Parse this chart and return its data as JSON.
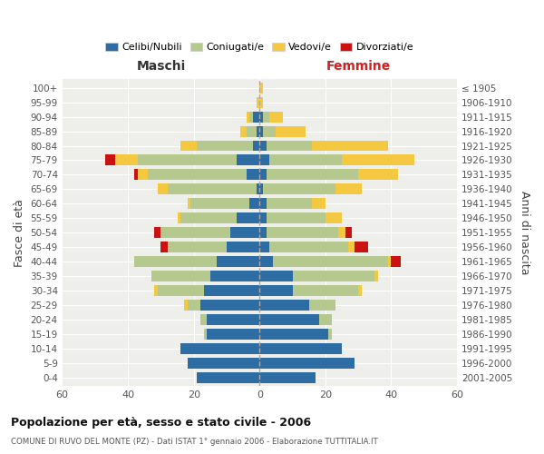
{
  "age_groups": [
    "0-4",
    "5-9",
    "10-14",
    "15-19",
    "20-24",
    "25-29",
    "30-34",
    "35-39",
    "40-44",
    "45-49",
    "50-54",
    "55-59",
    "60-64",
    "65-69",
    "70-74",
    "75-79",
    "80-84",
    "85-89",
    "90-94",
    "95-99",
    "100+"
  ],
  "birth_years": [
    "2001-2005",
    "1996-2000",
    "1991-1995",
    "1986-1990",
    "1981-1985",
    "1976-1980",
    "1971-1975",
    "1966-1970",
    "1961-1965",
    "1956-1960",
    "1951-1955",
    "1946-1950",
    "1941-1945",
    "1936-1940",
    "1931-1935",
    "1926-1930",
    "1921-1925",
    "1916-1920",
    "1911-1915",
    "1906-1910",
    "≤ 1905"
  ],
  "maschi": {
    "celibi": [
      19,
      22,
      24,
      16,
      16,
      18,
      17,
      15,
      13,
      10,
      9,
      7,
      3,
      1,
      4,
      7,
      2,
      1,
      2,
      0,
      0
    ],
    "coniugati": [
      0,
      0,
      0,
      1,
      2,
      4,
      14,
      18,
      25,
      18,
      21,
      17,
      18,
      27,
      30,
      30,
      17,
      3,
      1,
      0,
      0
    ],
    "vedovi": [
      0,
      0,
      0,
      0,
      0,
      1,
      1,
      0,
      0,
      0,
      0,
      1,
      1,
      3,
      3,
      7,
      5,
      2,
      1,
      1,
      0
    ],
    "divorziati": [
      0,
      0,
      0,
      0,
      0,
      0,
      0,
      0,
      0,
      2,
      2,
      0,
      0,
      0,
      1,
      3,
      0,
      0,
      0,
      0,
      0
    ]
  },
  "femmine": {
    "nubili": [
      17,
      29,
      25,
      21,
      18,
      15,
      10,
      10,
      4,
      3,
      2,
      2,
      2,
      1,
      2,
      3,
      2,
      1,
      1,
      0,
      0
    ],
    "coniugate": [
      0,
      0,
      0,
      1,
      4,
      8,
      20,
      25,
      35,
      24,
      22,
      18,
      14,
      22,
      28,
      22,
      14,
      4,
      2,
      0,
      0
    ],
    "vedove": [
      0,
      0,
      0,
      0,
      0,
      0,
      1,
      1,
      1,
      2,
      2,
      5,
      4,
      8,
      12,
      22,
      23,
      9,
      4,
      1,
      1
    ],
    "divorziate": [
      0,
      0,
      0,
      0,
      0,
      0,
      0,
      0,
      3,
      4,
      2,
      0,
      0,
      0,
      0,
      0,
      0,
      0,
      0,
      0,
      0
    ]
  },
  "colors": {
    "celibi_nubili": "#2E6DA4",
    "coniugati_e": "#B5C98E",
    "vedovi_e": "#F5C842",
    "divorziati_e": "#CC1111"
  },
  "xlim": 60,
  "title": "Popolazione per età, sesso e stato civile - 2006",
  "subtitle": "COMUNE DI RUVO DEL MONTE (PZ) - Dati ISTAT 1° gennaio 2006 - Elaborazione TUTTITALIA.IT",
  "ylabel_left": "Fasce di età",
  "ylabel_right": "Anni di nascita",
  "xlabel_maschi": "Maschi",
  "xlabel_femmine": "Femmine",
  "legend_labels": [
    "Celibi/Nubili",
    "Coniugati/e",
    "Vedovi/e",
    "Divorziati/e"
  ],
  "bg_color": "#eeeeea",
  "bar_height": 0.75
}
